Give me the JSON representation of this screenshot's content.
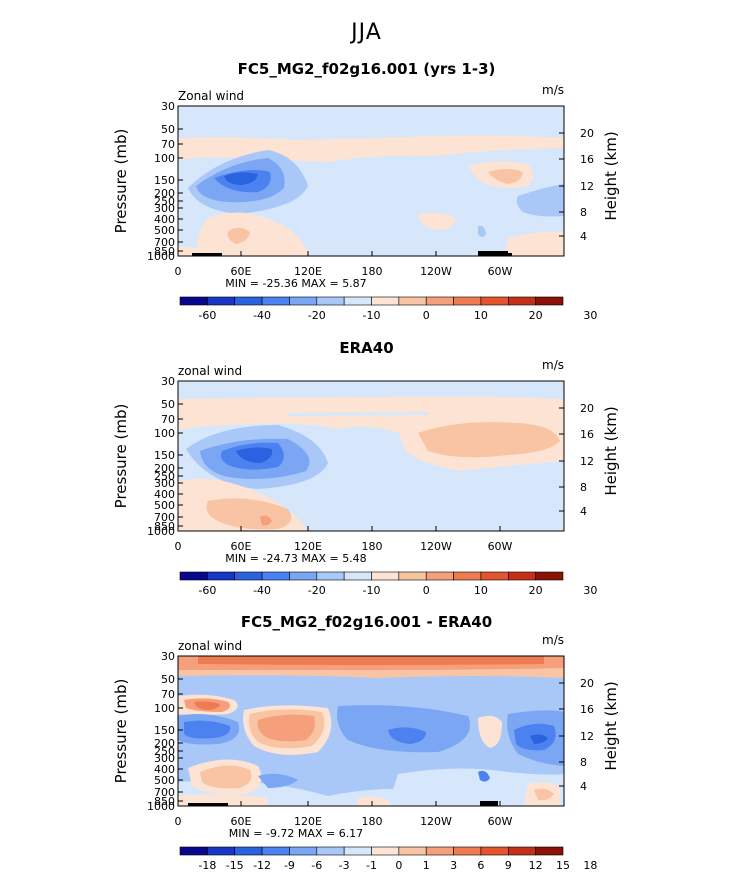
{
  "figure": {
    "title": "JJA"
  },
  "colors": {
    "scale": [
      "#08088c",
      "#1537c4",
      "#2b62e0",
      "#4c82ef",
      "#7aa6f4",
      "#a9c8f8",
      "#d6e7fb",
      "#fde3d3",
      "#f9c4a4",
      "#f5a07a",
      "#ef7b52",
      "#e2552e",
      "#c2301a",
      "#8a1208"
    ]
  },
  "chart_data": [
    {
      "type": "heatmap",
      "title": "FC5_MG2_f02g16.001 (yrs 1-3)",
      "left_label": "Zonal wind",
      "right_label": "m/s",
      "ylabel": "Pressure (mb)",
      "y2label": "Height (km)",
      "x_ticks": [
        "0",
        "60E",
        "120E",
        "180",
        "120W",
        "60W"
      ],
      "y_ticks": [
        "30",
        "50",
        "70",
        "100",
        "150",
        "200",
        "250",
        "300",
        "400",
        "500",
        "700",
        "850",
        "1000"
      ],
      "y2_ticks": [
        "20",
        "16",
        "12",
        "8",
        "4"
      ],
      "stats": "MIN = -25.36  MAX =   5.87",
      "colorbar_levels": [
        "-60",
        "",
        "-40",
        "",
        "-20",
        "",
        "-10",
        "",
        "0",
        "",
        "10",
        "",
        "20",
        "",
        "30"
      ],
      "contour_levels": [
        -60,
        -50,
        -40,
        -30,
        -20,
        -15,
        -10,
        -5,
        0,
        5,
        10,
        15,
        20,
        25,
        30
      ],
      "sample_values": [
        {
          "lon": 75,
          "p": 150,
          "u": -25.36
        },
        {
          "lon": 75,
          "p": 600,
          "u": 5.87
        },
        {
          "lon": 250,
          "p": 130,
          "u": 3
        },
        {
          "lon": 335,
          "p": 300,
          "u": -7
        }
      ]
    },
    {
      "type": "heatmap",
      "title": "ERA40",
      "left_label": "zonal wind",
      "right_label": "m/s",
      "ylabel": "Pressure (mb)",
      "y2label": "Height (km)",
      "x_ticks": [
        "0",
        "60E",
        "120E",
        "180",
        "120W",
        "60W"
      ],
      "y_ticks": [
        "30",
        "50",
        "70",
        "100",
        "150",
        "200",
        "250",
        "300",
        "400",
        "500",
        "700",
        "850",
        "1000"
      ],
      "y2_ticks": [
        "20",
        "16",
        "12",
        "8",
        "4"
      ],
      "stats": "MIN = -24.73  MAX =   5.48",
      "colorbar_levels": [
        "-60",
        "",
        "-40",
        "",
        "-20",
        "",
        "-10",
        "",
        "0",
        "",
        "10",
        "",
        "20",
        "",
        "30"
      ],
      "contour_levels": [
        -60,
        -50,
        -40,
        -30,
        -20,
        -15,
        -10,
        -5,
        0,
        5,
        10,
        15,
        20,
        25,
        30
      ],
      "sample_values": [
        {
          "lon": 80,
          "p": 150,
          "u": -24.73
        },
        {
          "lon": 90,
          "p": 700,
          "u": 5.48
        },
        {
          "lon": 260,
          "p": 120,
          "u": 4
        }
      ]
    },
    {
      "type": "heatmap",
      "title": "FC5_MG2_f02g16.001 - ERA40",
      "left_label": "zonal wind",
      "right_label": "m/s",
      "ylabel": "Pressure (mb)",
      "y2label": "Height (km)",
      "x_ticks": [
        "0",
        "60E",
        "120E",
        "180",
        "120W",
        "60W"
      ],
      "y_ticks": [
        "30",
        "50",
        "70",
        "100",
        "150",
        "200",
        "250",
        "300",
        "400",
        "500",
        "700",
        "850",
        "1000"
      ],
      "y2_ticks": [
        "20",
        "16",
        "12",
        "8",
        "4"
      ],
      "stats": "MIN =   -9.72  MAX =   6.17",
      "colorbar_levels": [
        "-18",
        "-15",
        "-12",
        "-9",
        "-6",
        "-3",
        "-1",
        "0",
        "1",
        "3",
        "6",
        "9",
        "12",
        "15",
        "18"
      ],
      "contour_levels": [
        -18,
        -15,
        -12,
        -9,
        -6,
        -3,
        -1,
        0,
        1,
        3,
        6,
        9,
        12,
        15,
        18
      ],
      "sample_values": [
        {
          "lon": 30,
          "p": 200,
          "u": -9.72
        },
        {
          "lon": 130,
          "p": 150,
          "u": 6.17
        },
        {
          "lon": 20,
          "p": 100,
          "u": 5
        },
        {
          "lon": 345,
          "p": 200,
          "u": -9
        }
      ]
    }
  ]
}
